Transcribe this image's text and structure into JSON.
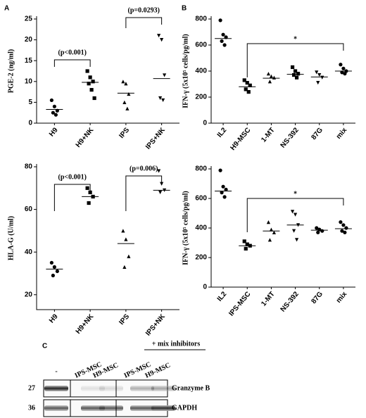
{
  "chart_data": [
    {
      "type": "strip",
      "panel": "A",
      "ylabel": "PGE-2 (ng/ml)",
      "categories": [
        "H9",
        "H9+NK",
        "IPS",
        "IPS+NK"
      ],
      "markers": [
        "circle",
        "square",
        "triangle",
        "triangle-down"
      ],
      "points": [
        [
          5.5,
          4,
          3,
          2.5,
          2
        ],
        [
          12.5,
          11,
          10,
          9.5,
          8,
          6
        ],
        [
          10,
          9.5,
          7,
          5,
          3.5
        ],
        [
          21,
          20,
          11.5,
          6,
          5.5
        ]
      ],
      "medians": [
        3.3,
        9.8,
        7.2,
        10.7
      ],
      "ylim": [
        0,
        25
      ],
      "yticks": [
        0,
        5,
        10,
        15,
        20,
        25
      ],
      "annotations": [
        {
          "text": "(p<0.001)"
        },
        {
          "text": "(p=0.0293)"
        }
      ]
    },
    {
      "type": "strip",
      "ylabel": "HLA-G (U/ml)",
      "categories": [
        "H9",
        "H9+NK",
        "IPS",
        "IPS+NK"
      ],
      "markers": [
        "circle",
        "square",
        "triangle",
        "triangle-down"
      ],
      "points": [
        [
          35,
          33,
          31,
          29
        ],
        [
          70,
          68,
          66,
          63
        ],
        [
          50,
          46,
          38,
          33
        ],
        [
          78,
          72,
          69,
          68
        ]
      ],
      "medians": [
        32,
        66,
        44,
        69
      ],
      "ylim": [
        13,
        80
      ],
      "yticks": [
        20,
        40,
        60,
        80
      ],
      "annotations": [
        {
          "text": "(p<0.001)"
        },
        {
          "text": "(p=0.006)"
        }
      ]
    },
    {
      "type": "strip",
      "panel": "B",
      "ylabel": "IFN-γ (5x10⁵ cells/pg/ml)",
      "categories": [
        "IL2",
        "H9-MSC",
        "1-MT",
        "NS-392",
        "87G",
        "mix"
      ],
      "markers": [
        "circle",
        "square",
        "triangle",
        "square",
        "triangle-down",
        "circle"
      ],
      "points": [
        [
          790,
          680,
          660,
          630,
          600
        ],
        [
          330,
          310,
          290,
          260,
          240
        ],
        [
          380,
          360,
          350,
          320
        ],
        [
          430,
          400,
          380,
          370,
          350
        ],
        [
          390,
          370,
          350,
          310
        ],
        [
          450,
          420,
          400,
          390,
          380
        ]
      ],
      "medians": [
        650,
        280,
        345,
        375,
        355,
        400
      ],
      "ylim": [
        0,
        800
      ],
      "yticks": [
        0,
        200,
        400,
        600,
        800
      ],
      "annotations": [
        {
          "text": "*"
        }
      ]
    },
    {
      "type": "strip",
      "ylabel": "IFN-γ (5x10⁵ cells/pg/ml)",
      "categories": [
        "IL2",
        "IPS-MSC",
        "1-MT",
        "NS-392",
        "87G",
        "mix"
      ],
      "markers": [
        "circle",
        "square",
        "triangle",
        "triangle-down",
        "circle",
        "circle"
      ],
      "points": [
        [
          790,
          680,
          660,
          640,
          610
        ],
        [
          310,
          290,
          280,
          260
        ],
        [
          440,
          390,
          370,
          320
        ],
        [
          510,
          490,
          420,
          380,
          320
        ],
        [
          400,
          390,
          380,
          370
        ],
        [
          440,
          420,
          400,
          380,
          370
        ]
      ],
      "medians": [
        650,
        280,
        380,
        420,
        385,
        395
      ],
      "ylim": [
        0,
        800
      ],
      "yticks": [
        0,
        200,
        400,
        600,
        800
      ],
      "annotations": [
        {
          "text": "*"
        }
      ]
    }
  ],
  "blot": {
    "panel": "C",
    "group_label": "+ mix inhibitors",
    "lanes": [
      "-",
      "IPS-MSC",
      "H9-MSC",
      "IPS-MSC",
      "H9-MSC"
    ],
    "rows": [
      {
        "marker": "27",
        "label": "Granzyme B"
      },
      {
        "marker": "36",
        "label": "GAPDH"
      }
    ]
  }
}
